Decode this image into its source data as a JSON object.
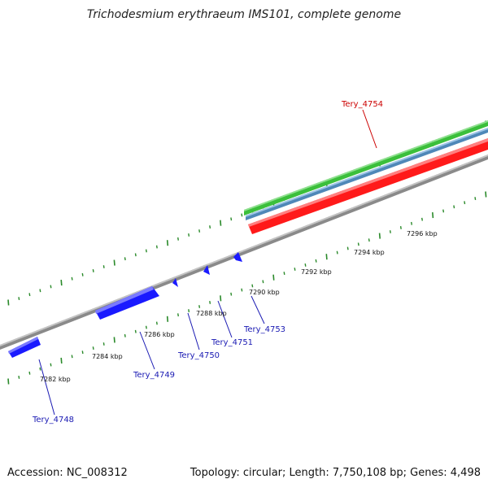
{
  "title": "Trichodesmium erythraeum IMS101, complete genome",
  "footer": {
    "accession": "Accession: NC_008312",
    "summary": "Topology: circular; Length: 7,750,108 bp; Genes: 4,498"
  },
  "colors": {
    "background": "#ffffff",
    "backbone": "#888888",
    "forward_gene": "#1a1aff",
    "highlight_gene": "#ff1a1a",
    "track_green": "#3bbf3b",
    "track_steelblue": "#4f88b8",
    "tick": "#2a8a2a",
    "label_blue": "#1a1ab3",
    "label_red": "#cc0000"
  },
  "kbp_ticks": [
    {
      "label": "7282 kbp",
      "value": 7282
    },
    {
      "label": "7284 kbp",
      "value": 7284
    },
    {
      "label": "7286 kbp",
      "value": 7286
    },
    {
      "label": "7288 kbp",
      "value": 7288
    },
    {
      "label": "7290 kbp",
      "value": 7290
    },
    {
      "label": "7292 kbp",
      "value": 7292
    },
    {
      "label": "7294 kbp",
      "value": 7294
    },
    {
      "label": "7296 kbp",
      "value": 7296
    }
  ],
  "genes": [
    {
      "id": "Tery_4748",
      "color": "label_blue"
    },
    {
      "id": "Tery_4749",
      "color": "label_blue"
    },
    {
      "id": "Tery_4750",
      "color": "label_blue"
    },
    {
      "id": "Tery_4751",
      "color": "label_blue"
    },
    {
      "id": "Tery_4753",
      "color": "label_blue"
    },
    {
      "id": "Tery_4754",
      "color": "label_red"
    }
  ]
}
